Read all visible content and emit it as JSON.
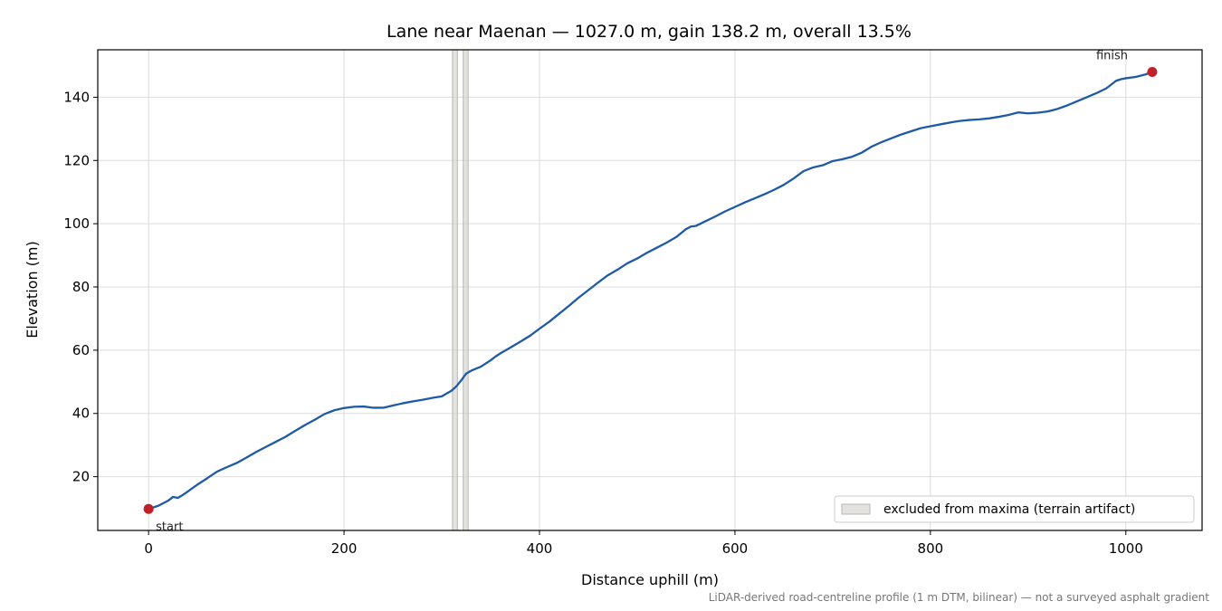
{
  "chart_data": {
    "type": "line",
    "title": "Lane near Maenan — 1027.0 m, gain 138.2 m, overall 13.5%",
    "xlabel": "Distance uphill (m)",
    "ylabel": "Elevation (m)",
    "xlim": [
      -52,
      1078
    ],
    "ylim": [
      3,
      155
    ],
    "xticks": [
      0,
      200,
      400,
      600,
      800,
      1000
    ],
    "yticks": [
      20,
      40,
      60,
      80,
      100,
      120,
      140
    ],
    "grid": true,
    "line_color": "#1f5aa6",
    "marker_color": "#c0202a",
    "series": [
      {
        "x": [
          0,
          10,
          20,
          25,
          30,
          35,
          40,
          50,
          60,
          70,
          80,
          90,
          100,
          110,
          120,
          130,
          140,
          150,
          160,
          170,
          180,
          190,
          200,
          210,
          220,
          230,
          240,
          250,
          260,
          270,
          280,
          290,
          300,
          310,
          315,
          320,
          325,
          330,
          340,
          350,
          355,
          360,
          370,
          380,
          390,
          400,
          410,
          420,
          430,
          440,
          450,
          460,
          470,
          480,
          490,
          500,
          510,
          520,
          530,
          540,
          550,
          555,
          560,
          570,
          580,
          590,
          600,
          610,
          620,
          630,
          640,
          650,
          660,
          670,
          680,
          690,
          700,
          710,
          720,
          730,
          740,
          750,
          760,
          770,
          780,
          790,
          800,
          810,
          820,
          830,
          840,
          850,
          860,
          870,
          880,
          890,
          900,
          910,
          920,
          930,
          940,
          950,
          960,
          970,
          980,
          990,
          995,
          1000,
          1010,
          1020,
          1027
        ],
        "y": [
          9.8,
          10.8,
          12.4,
          13.6,
          13.3,
          14.2,
          15.3,
          17.5,
          19.5,
          21.6,
          23,
          24.3,
          26,
          27.8,
          29.4,
          31,
          32.6,
          34.5,
          36.3,
          38,
          39.8,
          41,
          41.7,
          42.1,
          42.2,
          41.8,
          41.8,
          42.5,
          43.2,
          43.8,
          44.3,
          44.9,
          45.4,
          47.2,
          48.6,
          50.5,
          52.6,
          53.5,
          54.8,
          56.8,
          58,
          59,
          60.8,
          62.6,
          64.5,
          66.8,
          69,
          71.5,
          74,
          76.6,
          79,
          81.4,
          83.7,
          85.5,
          87.5,
          89,
          90.8,
          92.4,
          94,
          95.8,
          98.3,
          99.1,
          99.3,
          100.8,
          102.3,
          103.9,
          105.3,
          106.7,
          108,
          109.3,
          110.7,
          112.3,
          114.3,
          116.6,
          117.8,
          118.5,
          119.8,
          120.4,
          121.2,
          122.5,
          124.4,
          125.8,
          127,
          128.2,
          129.2,
          130.2,
          130.8,
          131.4,
          132,
          132.5,
          132.8,
          133,
          133.3,
          133.8,
          134.4,
          135.2,
          134.9,
          135.1,
          135.5,
          136.3,
          137.4,
          138.7,
          140,
          141.3,
          142.8,
          145.2,
          145.7,
          146,
          146.4,
          147.2,
          148
        ]
      }
    ],
    "excluded_bands": [
      [
        311,
        316
      ],
      [
        322,
        327
      ]
    ],
    "annotations": [
      {
        "label": "start",
        "x": 0,
        "y": 9.8
      },
      {
        "label": "finish",
        "x": 1027,
        "y": 148
      }
    ],
    "legend": {
      "label": "excluded from maxima (terrain artifact)",
      "placement": "lower-right"
    },
    "footnote": "LiDAR-derived road-centreline profile (1 m DTM, bilinear) — not a surveyed asphalt gradient"
  }
}
